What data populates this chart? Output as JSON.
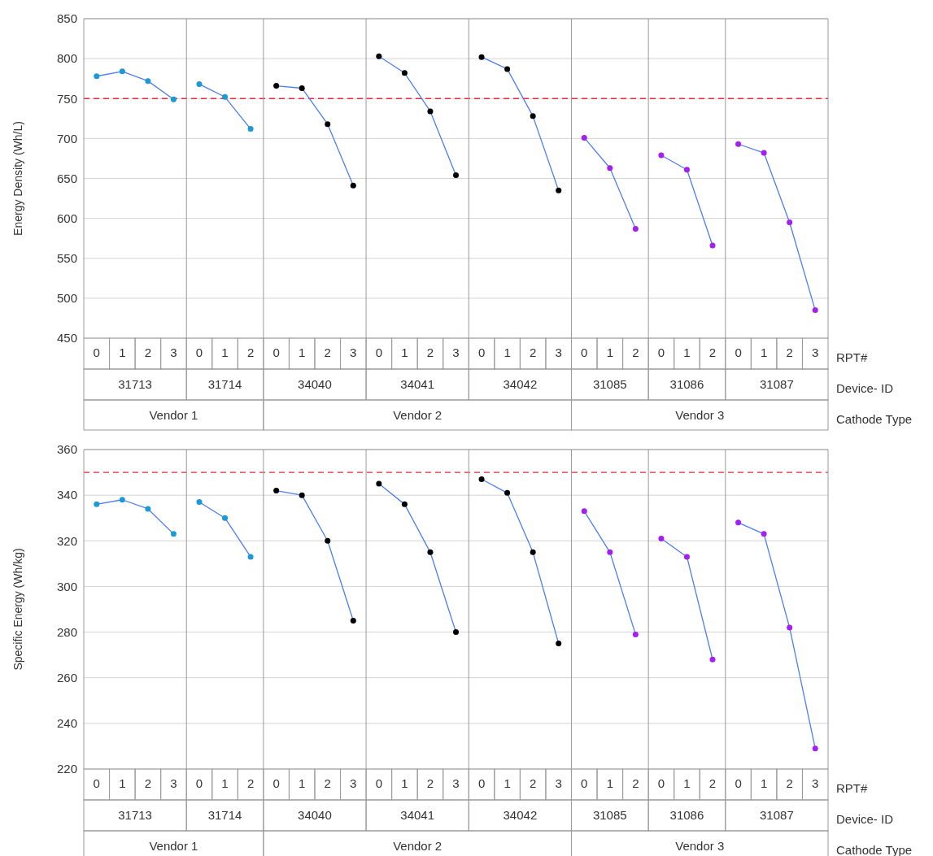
{
  "chart_data": [
    {
      "type": "line",
      "ylabel": "Energy Density (Wh/L)",
      "xlabel": "RPT#",
      "color": "#4d7ef2",
      "marker": "circle",
      "line_style": "solid",
      "grid": "y",
      "categories": [
        "0",
        "1",
        "2",
        "3",
        "0",
        "1",
        "2",
        "0",
        "1",
        "2",
        "3",
        "0",
        "1",
        "2",
        "3",
        "0",
        "1",
        "2",
        "3",
        "0",
        "1",
        "2",
        "0",
        "1",
        "2",
        "0",
        "1",
        "2",
        "3"
      ],
      "series": [
        {
          "color": "#1b9ad6",
          "values": [
            778,
            784,
            772,
            749,
            null,
            null,
            null,
            null,
            null,
            null,
            null,
            null,
            null,
            null,
            null,
            null,
            null,
            null,
            null,
            null,
            null,
            null,
            null,
            null,
            null,
            null,
            null,
            null,
            null
          ]
        },
        {
          "color": "#1b9ad6",
          "values": [
            null,
            null,
            null,
            null,
            768,
            752,
            712,
            null,
            null,
            null,
            null,
            null,
            null,
            null,
            null,
            null,
            null,
            null,
            null,
            null,
            null,
            null,
            null,
            null,
            null,
            null,
            null,
            null,
            null
          ]
        },
        {
          "color": "#000000",
          "values": [
            null,
            null,
            null,
            null,
            null,
            null,
            null,
            766,
            763,
            718,
            641,
            null,
            null,
            null,
            null,
            null,
            null,
            null,
            null,
            null,
            null,
            null,
            null,
            null,
            null,
            null,
            null,
            null,
            null
          ]
        },
        {
          "color": "#000000",
          "values": [
            null,
            null,
            null,
            null,
            null,
            null,
            null,
            null,
            null,
            null,
            null,
            803,
            782,
            734,
            654,
            null,
            null,
            null,
            null,
            null,
            null,
            null,
            null,
            null,
            null,
            null,
            null,
            null,
            null
          ]
        },
        {
          "color": "#000000",
          "values": [
            null,
            null,
            null,
            null,
            null,
            null,
            null,
            null,
            null,
            null,
            null,
            null,
            null,
            null,
            null,
            802,
            787,
            728,
            635,
            null,
            null,
            null,
            null,
            null,
            null,
            null,
            null,
            null,
            null
          ]
        },
        {
          "color": "#a41ff0",
          "values": [
            null,
            null,
            null,
            null,
            null,
            null,
            null,
            null,
            null,
            null,
            null,
            null,
            null,
            null,
            null,
            null,
            null,
            null,
            null,
            701,
            663,
            587,
            null,
            null,
            null,
            null,
            null,
            null,
            null
          ]
        },
        {
          "color": "#a41ff0",
          "values": [
            null,
            null,
            null,
            null,
            null,
            null,
            null,
            null,
            null,
            null,
            null,
            null,
            null,
            null,
            null,
            null,
            null,
            null,
            null,
            null,
            null,
            null,
            679,
            661,
            566,
            null,
            null,
            null,
            null
          ]
        },
        {
          "color": "#a41ff0",
          "values": [
            null,
            null,
            null,
            null,
            null,
            null,
            null,
            null,
            null,
            null,
            null,
            null,
            null,
            null,
            null,
            null,
            null,
            null,
            null,
            null,
            null,
            null,
            null,
            null,
            null,
            693,
            682,
            595,
            485
          ]
        }
      ],
      "ylim": [
        450,
        850
      ],
      "yticks": [
        450,
        500,
        550,
        600,
        650,
        700,
        750,
        800,
        850
      ],
      "ref_lines": [
        {
          "axis": "y",
          "value": 750,
          "color": "#e8283c",
          "line_style": "dashed"
        }
      ],
      "annotations": [
        "Device- ID",
        "Cathode Type",
        "Vendor 1",
        "Vendor 2",
        "Vendor 3",
        "31713",
        "31714",
        "34040",
        "34041",
        "34042",
        "31085",
        "31086",
        "31087"
      ]
    },
    {
      "type": "line",
      "ylabel": "Specific Energy (Wh/kg)",
      "xlabel": "RPT#",
      "color": "#4d7ef2",
      "marker": "circle",
      "line_style": "solid",
      "grid": "y",
      "categories": [
        "0",
        "1",
        "2",
        "3",
        "0",
        "1",
        "2",
        "0",
        "1",
        "2",
        "3",
        "0",
        "1",
        "2",
        "3",
        "0",
        "1",
        "2",
        "3",
        "0",
        "1",
        "2",
        "0",
        "1",
        "2",
        "0",
        "1",
        "2",
        "3"
      ],
      "series": [
        {
          "color": "#1b9ad6",
          "values": [
            336,
            338,
            334,
            323,
            null,
            null,
            null,
            null,
            null,
            null,
            null,
            null,
            null,
            null,
            null,
            null,
            null,
            null,
            null,
            null,
            null,
            null,
            null,
            null,
            null,
            null,
            null,
            null,
            null
          ]
        },
        {
          "color": "#1b9ad6",
          "values": [
            null,
            null,
            null,
            null,
            337,
            330,
            313,
            null,
            null,
            null,
            null,
            null,
            null,
            null,
            null,
            null,
            null,
            null,
            null,
            null,
            null,
            null,
            null,
            null,
            null,
            null,
            null,
            null,
            null
          ]
        },
        {
          "color": "#000000",
          "values": [
            null,
            null,
            null,
            null,
            null,
            null,
            null,
            342,
            340,
            320,
            285,
            null,
            null,
            null,
            null,
            null,
            null,
            null,
            null,
            null,
            null,
            null,
            null,
            null,
            null,
            null,
            null,
            null,
            null
          ]
        },
        {
          "color": "#000000",
          "values": [
            null,
            null,
            null,
            null,
            null,
            null,
            null,
            null,
            null,
            null,
            null,
            345,
            336,
            315,
            280,
            null,
            null,
            null,
            null,
            null,
            null,
            null,
            null,
            null,
            null,
            null,
            null,
            null,
            null
          ]
        },
        {
          "color": "#000000",
          "values": [
            null,
            null,
            null,
            null,
            null,
            null,
            null,
            null,
            null,
            null,
            null,
            null,
            null,
            null,
            null,
            347,
            341,
            315,
            275,
            null,
            null,
            null,
            null,
            null,
            null,
            null,
            null,
            null,
            null
          ]
        },
        {
          "color": "#a41ff0",
          "values": [
            null,
            null,
            null,
            null,
            null,
            null,
            null,
            null,
            null,
            null,
            null,
            null,
            null,
            null,
            null,
            null,
            null,
            null,
            null,
            333,
            315,
            279,
            null,
            null,
            null,
            null,
            null,
            null,
            null
          ]
        },
        {
          "color": "#a41ff0",
          "values": [
            null,
            null,
            null,
            null,
            null,
            null,
            null,
            null,
            null,
            null,
            null,
            null,
            null,
            null,
            null,
            null,
            null,
            null,
            null,
            null,
            null,
            null,
            321,
            313,
            268,
            null,
            null,
            null,
            null
          ]
        },
        {
          "color": "#a41ff0",
          "values": [
            null,
            null,
            null,
            null,
            null,
            null,
            null,
            null,
            null,
            null,
            null,
            null,
            null,
            null,
            null,
            null,
            null,
            null,
            null,
            null,
            null,
            null,
            null,
            null,
            null,
            328,
            323,
            282,
            229
          ]
        }
      ],
      "ylim": [
        220,
        360
      ],
      "yticks": [
        220,
        240,
        260,
        280,
        300,
        320,
        340,
        360
      ],
      "ref_lines": [
        {
          "axis": "y",
          "value": 350,
          "color": "#e8283c",
          "line_style": "dashed"
        }
      ],
      "annotations": [
        "Device- ID",
        "Cathode Type",
        "Vendor 1",
        "Vendor 2",
        "Vendor 3",
        "31713",
        "31714",
        "34040",
        "34041",
        "34042",
        "31085",
        "31086",
        "31087"
      ]
    }
  ]
}
